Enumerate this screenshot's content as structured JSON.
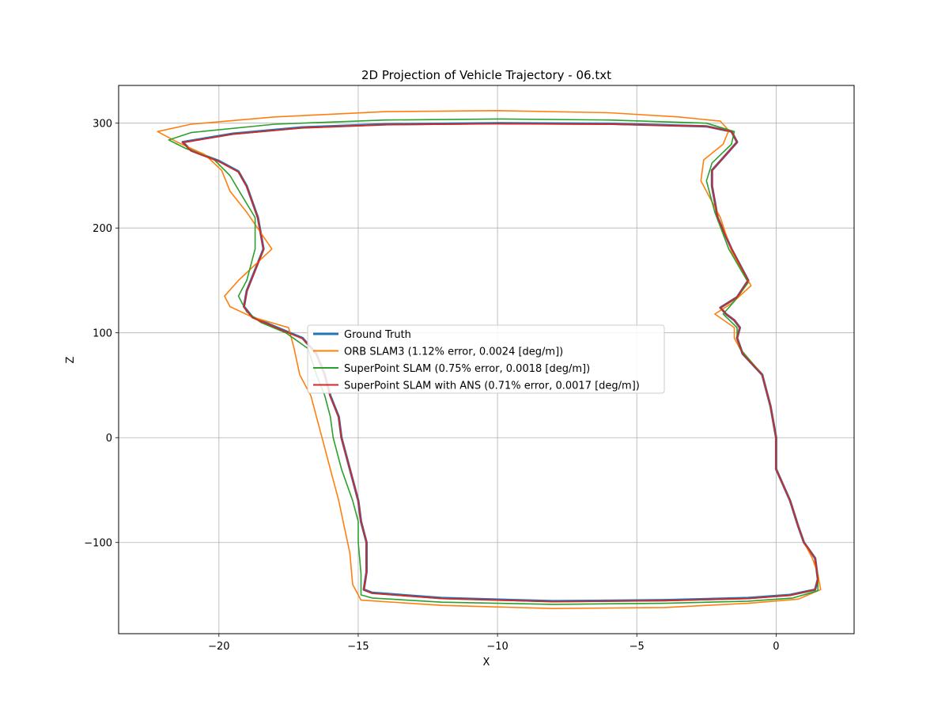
{
  "chart_data": {
    "type": "line",
    "title": "2D Projection of Vehicle Trajectory - 06.txt",
    "xlabel": "X",
    "ylabel": "Z",
    "xlim": [
      -23.6,
      2.8
    ],
    "ylim": [
      -187,
      336
    ],
    "xticks": [
      -20,
      -15,
      -10,
      -5,
      0
    ],
    "yticks": [
      -100,
      0,
      100,
      200,
      300
    ],
    "xtick_labels": [
      "−20",
      "−15",
      "−10",
      "−5",
      "0"
    ],
    "ytick_labels": [
      "−100",
      "0",
      "100",
      "200",
      "300"
    ],
    "grid": true,
    "legend_position": "center",
    "series": [
      {
        "name": "Ground Truth",
        "color": "#1f77b4",
        "points": [
          [
            0,
            0
          ],
          [
            -0.2,
            30
          ],
          [
            -0.5,
            60
          ],
          [
            -1.2,
            80
          ],
          [
            -1.4,
            95
          ],
          [
            -1.3,
            105
          ],
          [
            -1.5,
            112
          ],
          [
            -1.8,
            118
          ],
          [
            -2.0,
            124
          ],
          [
            -1.4,
            134
          ],
          [
            -1.0,
            150
          ],
          [
            -1.6,
            180
          ],
          [
            -2.1,
            210
          ],
          [
            -2.2,
            225
          ],
          [
            -2.3,
            240
          ],
          [
            -2.3,
            255
          ],
          [
            -1.8,
            270
          ],
          [
            -1.4,
            282
          ],
          [
            -1.6,
            292
          ],
          [
            -2.5,
            297
          ],
          [
            -6,
            299.5
          ],
          [
            -10,
            300
          ],
          [
            -14,
            299
          ],
          [
            -17,
            296
          ],
          [
            -19.5,
            290
          ],
          [
            -21.3,
            282
          ],
          [
            -21,
            274
          ],
          [
            -20,
            264
          ],
          [
            -19.3,
            254
          ],
          [
            -19,
            240
          ],
          [
            -18.6,
            210
          ],
          [
            -18.4,
            180
          ],
          [
            -18.7,
            160
          ],
          [
            -19.0,
            140
          ],
          [
            -19.1,
            125
          ],
          [
            -18.8,
            115
          ],
          [
            -18.0,
            106
          ],
          [
            -17.0,
            95
          ],
          [
            -16.5,
            80
          ],
          [
            -16.2,
            60
          ],
          [
            -16.0,
            40
          ],
          [
            -15.7,
            20
          ],
          [
            -15.6,
            0
          ],
          [
            -15.3,
            -30
          ],
          [
            -15.0,
            -60
          ],
          [
            -14.9,
            -80
          ],
          [
            -14.7,
            -100
          ],
          [
            -14.7,
            -128
          ],
          [
            -14.8,
            -145
          ],
          [
            -14.5,
            -148
          ],
          [
            -12,
            -153
          ],
          [
            -8,
            -156
          ],
          [
            -4,
            -155
          ],
          [
            -1,
            -153
          ],
          [
            0.5,
            -150
          ],
          [
            1.4,
            -145
          ],
          [
            1.5,
            -135
          ],
          [
            1.4,
            -115
          ],
          [
            1.0,
            -100
          ],
          [
            0.8,
            -85
          ],
          [
            0.5,
            -60
          ],
          [
            0.0,
            -30
          ],
          [
            0.0,
            -10
          ],
          [
            0,
            0
          ]
        ]
      },
      {
        "name": "ORB SLAM3 (1.12% error, 0.0024 [deg/m])",
        "color": "#ff7f0e",
        "points": [
          [
            0,
            0
          ],
          [
            -0.2,
            30
          ],
          [
            -0.5,
            60
          ],
          [
            -1.3,
            85
          ],
          [
            -1.5,
            95
          ],
          [
            -1.5,
            105
          ],
          [
            -2.2,
            118
          ],
          [
            -1.6,
            128
          ],
          [
            -0.9,
            145
          ],
          [
            -1.6,
            178
          ],
          [
            -2.0,
            210
          ],
          [
            -2.7,
            245
          ],
          [
            -2.6,
            265
          ],
          [
            -1.9,
            280
          ],
          [
            -1.7,
            293
          ],
          [
            -2.0,
            302
          ],
          [
            -3.5,
            306
          ],
          [
            -6,
            310
          ],
          [
            -10,
            312
          ],
          [
            -14,
            311
          ],
          [
            -18,
            306
          ],
          [
            -21,
            299
          ],
          [
            -22.2,
            292
          ],
          [
            -21.5,
            282
          ],
          [
            -20.5,
            270
          ],
          [
            -19.9,
            255
          ],
          [
            -19.6,
            235
          ],
          [
            -19.0,
            215
          ],
          [
            -18.1,
            180
          ],
          [
            -19.3,
            150
          ],
          [
            -19.8,
            135
          ],
          [
            -19.6,
            125
          ],
          [
            -18.8,
            115
          ],
          [
            -17.5,
            105
          ],
          [
            -17.3,
            85
          ],
          [
            -17.1,
            60
          ],
          [
            -16.7,
            40
          ],
          [
            -16.5,
            20
          ],
          [
            -16.3,
            0
          ],
          [
            -16.0,
            -30
          ],
          [
            -15.7,
            -60
          ],
          [
            -15.5,
            -85
          ],
          [
            -15.3,
            -110
          ],
          [
            -15.2,
            -140
          ],
          [
            -15.0,
            -150
          ],
          [
            -14.9,
            -155
          ],
          [
            -12,
            -160
          ],
          [
            -8,
            -163
          ],
          [
            -4,
            -162
          ],
          [
            -1,
            -158
          ],
          [
            0.8,
            -154
          ],
          [
            1.6,
            -145
          ],
          [
            1.5,
            -130
          ],
          [
            1.3,
            -115
          ],
          [
            1.0,
            -100
          ],
          [
            0.8,
            -85
          ],
          [
            0.5,
            -60
          ],
          [
            0.0,
            -30
          ],
          [
            0.0,
            -10
          ],
          [
            0,
            0
          ]
        ]
      },
      {
        "name": "SuperPoint SLAM (0.75% error, 0.0018 [deg/m])",
        "color": "#2ca02c",
        "points": [
          [
            0,
            0
          ],
          [
            -0.2,
            30
          ],
          [
            -0.5,
            60
          ],
          [
            -1.3,
            85
          ],
          [
            -1.4,
            95
          ],
          [
            -1.4,
            105
          ],
          [
            -1.9,
            118
          ],
          [
            -1.5,
            130
          ],
          [
            -1.0,
            148
          ],
          [
            -1.7,
            180
          ],
          [
            -2.2,
            215
          ],
          [
            -2.5,
            245
          ],
          [
            -2.3,
            262
          ],
          [
            -1.6,
            280
          ],
          [
            -1.5,
            292
          ],
          [
            -2.5,
            300
          ],
          [
            -6,
            303
          ],
          [
            -10,
            304
          ],
          [
            -14,
            303
          ],
          [
            -18,
            299
          ],
          [
            -21,
            291
          ],
          [
            -21.8,
            284
          ],
          [
            -21.2,
            276
          ],
          [
            -20.2,
            266
          ],
          [
            -19.6,
            250
          ],
          [
            -19.2,
            232
          ],
          [
            -18.7,
            210
          ],
          [
            -18.7,
            180
          ],
          [
            -19.0,
            150
          ],
          [
            -19.3,
            135
          ],
          [
            -19.0,
            120
          ],
          [
            -18.5,
            110
          ],
          [
            -17.6,
            100
          ],
          [
            -16.8,
            85
          ],
          [
            -16.5,
            60
          ],
          [
            -16.2,
            40
          ],
          [
            -16.0,
            20
          ],
          [
            -15.9,
            0
          ],
          [
            -15.6,
            -30
          ],
          [
            -15.2,
            -60
          ],
          [
            -15.0,
            -80
          ],
          [
            -15.0,
            -100
          ],
          [
            -14.9,
            -130
          ],
          [
            -14.9,
            -150
          ],
          [
            -14.5,
            -153
          ],
          [
            -12,
            -157
          ],
          [
            -8,
            -159
          ],
          [
            -4,
            -158
          ],
          [
            -1,
            -156
          ],
          [
            0.6,
            -153
          ],
          [
            1.5,
            -146
          ],
          [
            1.5,
            -132
          ],
          [
            1.4,
            -115
          ],
          [
            1.0,
            -100
          ],
          [
            0.8,
            -85
          ],
          [
            0.5,
            -60
          ],
          [
            0.0,
            -30
          ],
          [
            0.0,
            -10
          ],
          [
            0,
            0
          ]
        ]
      },
      {
        "name": "SuperPoint SLAM with ANS (0.71% error, 0.0017 [deg/m])",
        "color": "#d62728",
        "points": [
          [
            0,
            0
          ],
          [
            -0.2,
            30
          ],
          [
            -0.5,
            60
          ],
          [
            -1.2,
            80
          ],
          [
            -1.4,
            95
          ],
          [
            -1.3,
            105
          ],
          [
            -1.5,
            112
          ],
          [
            -1.8,
            118
          ],
          [
            -2.0,
            124
          ],
          [
            -1.4,
            134
          ],
          [
            -1.0,
            150
          ],
          [
            -1.6,
            180
          ],
          [
            -2.1,
            210
          ],
          [
            -2.2,
            225
          ],
          [
            -2.3,
            240
          ],
          [
            -2.3,
            255
          ],
          [
            -1.8,
            270
          ],
          [
            -1.4,
            282
          ],
          [
            -1.6,
            292
          ],
          [
            -2.5,
            297
          ],
          [
            -6,
            299
          ],
          [
            -10,
            299.5
          ],
          [
            -14,
            298.5
          ],
          [
            -17,
            295.5
          ],
          [
            -19.5,
            289.5
          ],
          [
            -21.3,
            281.5
          ],
          [
            -21,
            273.5
          ],
          [
            -20,
            263.5
          ],
          [
            -19.3,
            253.5
          ],
          [
            -19,
            239.5
          ],
          [
            -18.6,
            209.5
          ],
          [
            -18.4,
            179.5
          ],
          [
            -18.7,
            159.5
          ],
          [
            -19.0,
            139.5
          ],
          [
            -19.1,
            124.5
          ],
          [
            -18.8,
            114.5
          ],
          [
            -18.0,
            105.5
          ],
          [
            -17.0,
            94.5
          ],
          [
            -16.5,
            79.5
          ],
          [
            -16.2,
            59.5
          ],
          [
            -16.0,
            39.5
          ],
          [
            -15.7,
            19.5
          ],
          [
            -15.6,
            -0.5
          ],
          [
            -15.3,
            -30
          ],
          [
            -15.0,
            -60
          ],
          [
            -14.9,
            -80
          ],
          [
            -14.7,
            -100
          ],
          [
            -14.7,
            -128
          ],
          [
            -14.8,
            -145
          ],
          [
            -14.5,
            -148.5
          ],
          [
            -12,
            -153.5
          ],
          [
            -8,
            -156.5
          ],
          [
            -4,
            -155.5
          ],
          [
            -1,
            -153.5
          ],
          [
            0.5,
            -150.5
          ],
          [
            1.4,
            -145
          ],
          [
            1.5,
            -135
          ],
          [
            1.4,
            -115
          ],
          [
            1.0,
            -100
          ],
          [
            0.8,
            -85
          ],
          [
            0.5,
            -60
          ],
          [
            0.0,
            -30
          ],
          [
            0.0,
            -10
          ],
          [
            0,
            0
          ]
        ]
      }
    ]
  }
}
